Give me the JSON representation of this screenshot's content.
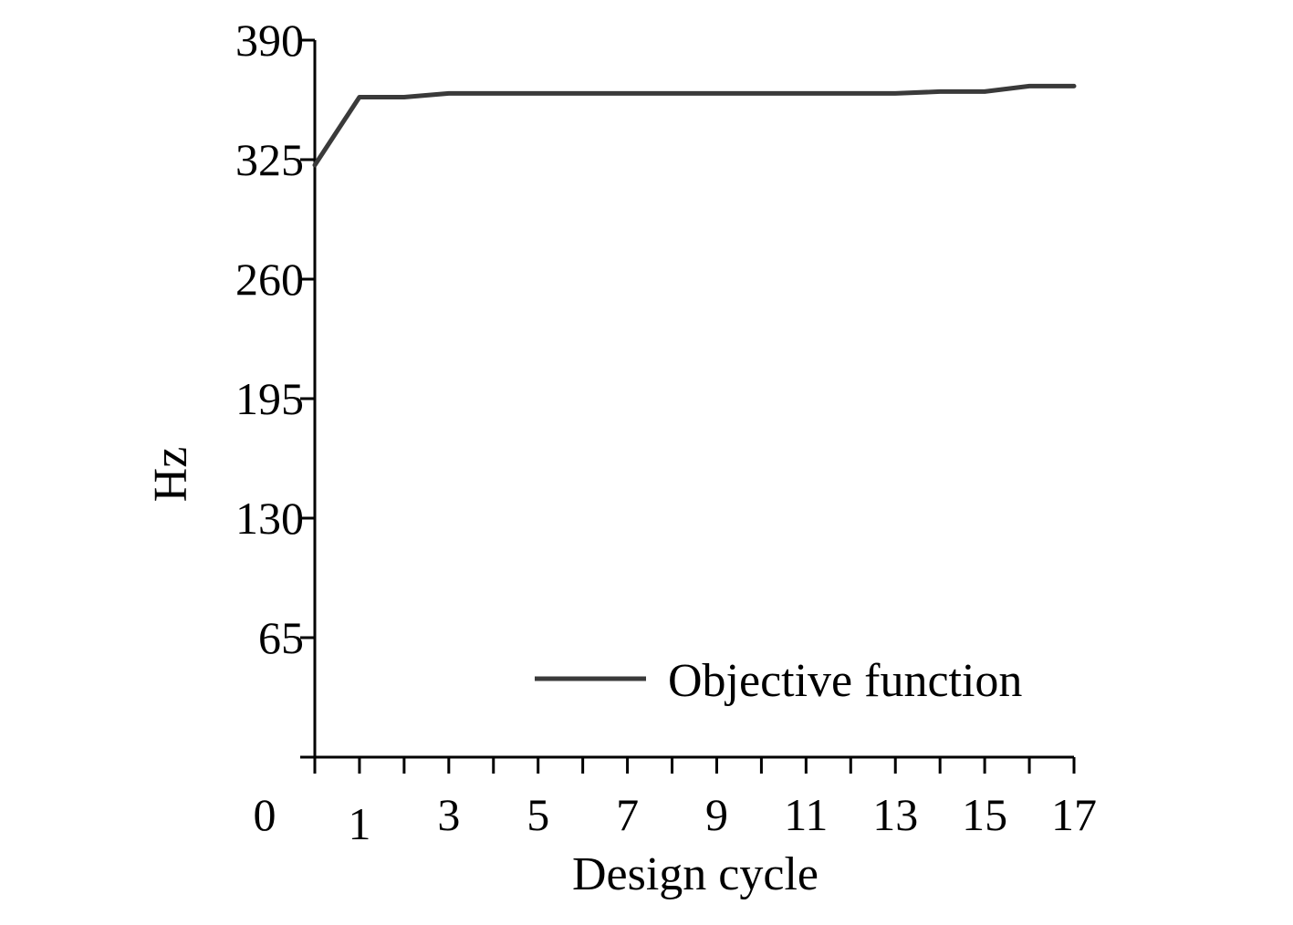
{
  "chart_data": {
    "type": "line",
    "xlabel": "Design cycle",
    "ylabel": "Hz",
    "xlim": [
      0,
      17
    ],
    "ylim": [
      0,
      390
    ],
    "x_ticks": [
      0,
      1,
      2,
      3,
      4,
      5,
      6,
      7,
      8,
      9,
      10,
      11,
      12,
      13,
      14,
      15,
      16,
      17
    ],
    "x_tick_labels": [
      {
        "x": 0,
        "label": "0"
      },
      {
        "x": 1,
        "label": "1"
      },
      {
        "x": 3,
        "label": "3"
      },
      {
        "x": 5,
        "label": "5"
      },
      {
        "x": 7,
        "label": "7"
      },
      {
        "x": 9,
        "label": "9"
      },
      {
        "x": 11,
        "label": "11"
      },
      {
        "x": 13,
        "label": "13"
      },
      {
        "x": 15,
        "label": "15"
      },
      {
        "x": 17,
        "label": "17"
      }
    ],
    "y_ticks": [
      65,
      130,
      195,
      260,
      325,
      390
    ],
    "y_tick_labels": [
      "65",
      "130",
      "195",
      "260",
      "325",
      "390"
    ],
    "grid": false,
    "legend_position": "bottom-right",
    "series": [
      {
        "name": "Objective function",
        "color": "#3a3a3a",
        "x": [
          0,
          1,
          2,
          3,
          4,
          5,
          6,
          7,
          8,
          9,
          10,
          11,
          12,
          13,
          14,
          15,
          16,
          17
        ],
        "values": [
          322,
          359,
          359,
          361,
          361,
          361,
          361,
          361,
          361,
          361,
          361,
          361,
          361,
          361,
          362,
          362,
          365,
          365
        ]
      }
    ]
  }
}
